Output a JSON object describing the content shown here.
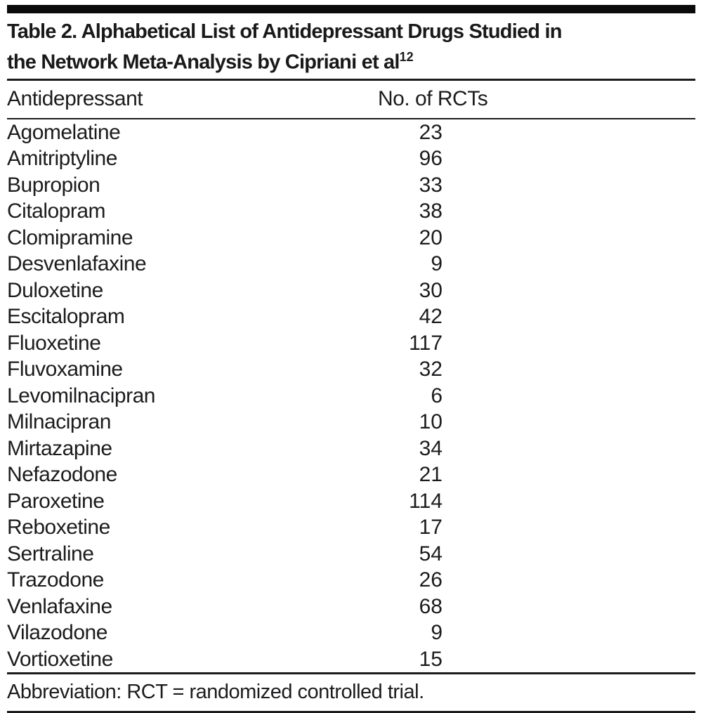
{
  "table": {
    "title_line1": "Table 2. Alphabetical List of Antidepressant Drugs Studied in",
    "title_line2": "the Network Meta-Analysis by Cipriani et al",
    "title_superscript": "12",
    "columns": [
      "Antidepressant",
      "No. of RCTs"
    ],
    "rows": [
      {
        "drug": "Agomelatine",
        "rcts": "23"
      },
      {
        "drug": "Amitriptyline",
        "rcts": "96"
      },
      {
        "drug": "Bupropion",
        "rcts": "33"
      },
      {
        "drug": "Citalopram",
        "rcts": "38"
      },
      {
        "drug": "Clomipramine",
        "rcts": "20"
      },
      {
        "drug": "Desvenlafaxine",
        "rcts": "9"
      },
      {
        "drug": "Duloxetine",
        "rcts": "30"
      },
      {
        "drug": "Escitalopram",
        "rcts": "42"
      },
      {
        "drug": "Fluoxetine",
        "rcts": "117"
      },
      {
        "drug": "Fluvoxamine",
        "rcts": "32"
      },
      {
        "drug": "Levomilnacipran",
        "rcts": "6"
      },
      {
        "drug": "Milnacipran",
        "rcts": "10"
      },
      {
        "drug": "Mirtazapine",
        "rcts": "34"
      },
      {
        "drug": "Nefazodone",
        "rcts": "21"
      },
      {
        "drug": "Paroxetine",
        "rcts": "114"
      },
      {
        "drug": "Reboxetine",
        "rcts": "17"
      },
      {
        "drug": "Sertraline",
        "rcts": "54"
      },
      {
        "drug": "Trazodone",
        "rcts": "26"
      },
      {
        "drug": "Venlafaxine",
        "rcts": "68"
      },
      {
        "drug": "Vilazodone",
        "rcts": "9"
      },
      {
        "drug": "Vortioxetine",
        "rcts": "15"
      }
    ],
    "footnote": "Abbreviation: RCT = randomized controlled trial."
  },
  "colors": {
    "text": "#1c1c1e",
    "rule": "#1b1b1b",
    "topbar": "#0a0a0a",
    "background": "#ffffff"
  }
}
